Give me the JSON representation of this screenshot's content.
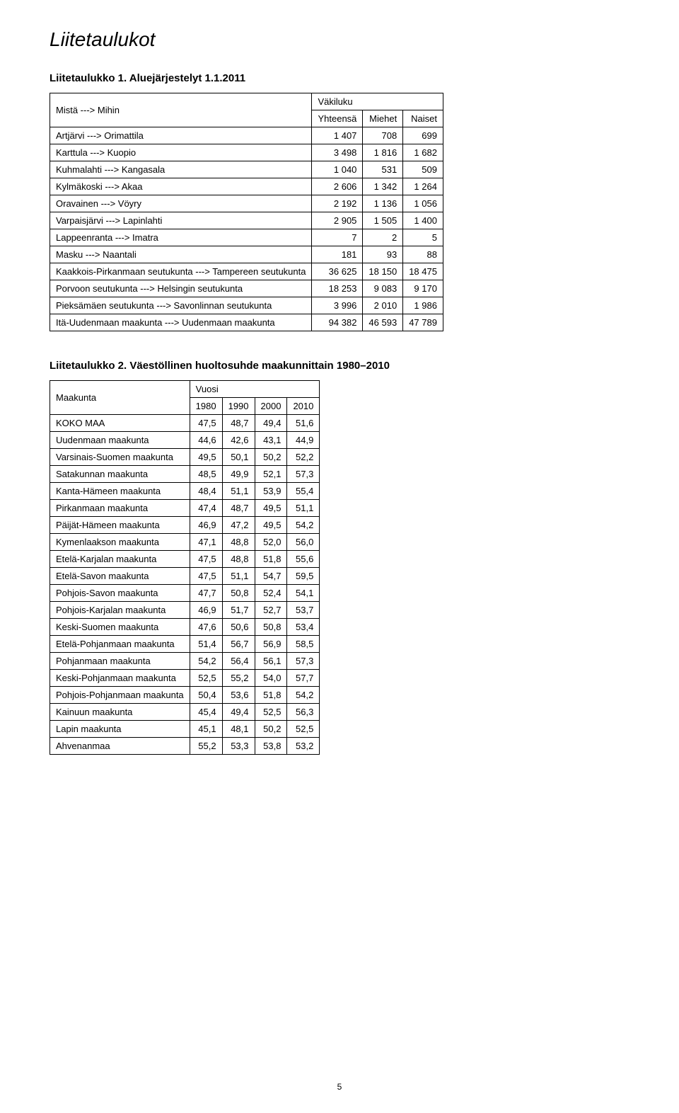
{
  "main_title": "Liitetaulukot",
  "table1": {
    "title": "Liitetaulukko 1. Aluejärjestelyt 1.1.2011",
    "header_col1": "Mistä ---> Mihin",
    "header_span": "Väkiluku",
    "header_sub": [
      "Yhteensä",
      "Miehet",
      "Naiset"
    ],
    "rows": [
      {
        "label": "Artjärvi ---> Orimattila",
        "v": [
          "1 407",
          "708",
          "699"
        ]
      },
      {
        "label": "Karttula ---> Kuopio",
        "v": [
          "3 498",
          "1 816",
          "1 682"
        ]
      },
      {
        "label": "Kuhmalahti ---> Kangasala",
        "v": [
          "1 040",
          "531",
          "509"
        ]
      },
      {
        "label": "Kylmäkoski ---> Akaa",
        "v": [
          "2 606",
          "1 342",
          "1 264"
        ]
      },
      {
        "label": "Oravainen ---> Vöyry",
        "v": [
          "2 192",
          "1 136",
          "1 056"
        ]
      },
      {
        "label": "Varpaisjärvi ---> Lapinlahti",
        "v": [
          "2 905",
          "1 505",
          "1 400"
        ]
      },
      {
        "label": "Lappeenranta ---> Imatra",
        "v": [
          "7",
          "2",
          "5"
        ]
      },
      {
        "label": "Masku ---> Naantali",
        "v": [
          "181",
          "93",
          "88"
        ]
      },
      {
        "label": "Kaakkois-Pirkanmaan seutukunta ---> Tampereen seutukunta",
        "v": [
          "36 625",
          "18 150",
          "18 475"
        ]
      },
      {
        "label": "Porvoon seutukunta ---> Helsingin seutukunta",
        "v": [
          "18 253",
          "9 083",
          "9 170"
        ]
      },
      {
        "label": "Pieksämäen seutukunta ---> Savonlinnan seutukunta",
        "v": [
          "3 996",
          "2 010",
          "1 986"
        ]
      },
      {
        "label": "Itä-Uudenmaan maakunta ---> Uudenmaan maakunta",
        "v": [
          "94 382",
          "46 593",
          "47 789"
        ]
      }
    ]
  },
  "table2": {
    "title": "Liitetaulukko 2. Väestöllinen huoltosuhde maakunnittain 1980–2010",
    "header_col1": "Maakunta",
    "header_span": "Vuosi",
    "years": [
      "1980",
      "1990",
      "2000",
      "2010"
    ],
    "rows": [
      {
        "label": "KOKO MAA",
        "v": [
          "47,5",
          "48,7",
          "49,4",
          "51,6"
        ]
      },
      {
        "label": "Uudenmaan maakunta",
        "v": [
          "44,6",
          "42,6",
          "43,1",
          "44,9"
        ]
      },
      {
        "label": "Varsinais-Suomen maakunta",
        "v": [
          "49,5",
          "50,1",
          "50,2",
          "52,2"
        ]
      },
      {
        "label": "Satakunnan maakunta",
        "v": [
          "48,5",
          "49,9",
          "52,1",
          "57,3"
        ]
      },
      {
        "label": "Kanta-Hämeen maakunta",
        "v": [
          "48,4",
          "51,1",
          "53,9",
          "55,4"
        ]
      },
      {
        "label": "Pirkanmaan maakunta",
        "v": [
          "47,4",
          "48,7",
          "49,5",
          "51,1"
        ]
      },
      {
        "label": "Päijät-Hämeen maakunta",
        "v": [
          "46,9",
          "47,2",
          "49,5",
          "54,2"
        ]
      },
      {
        "label": "Kymenlaakson maakunta",
        "v": [
          "47,1",
          "48,8",
          "52,0",
          "56,0"
        ]
      },
      {
        "label": "Etelä-Karjalan maakunta",
        "v": [
          "47,5",
          "48,8",
          "51,8",
          "55,6"
        ]
      },
      {
        "label": "Etelä-Savon maakunta",
        "v": [
          "47,5",
          "51,1",
          "54,7",
          "59,5"
        ]
      },
      {
        "label": "Pohjois-Savon maakunta",
        "v": [
          "47,7",
          "50,8",
          "52,4",
          "54,1"
        ]
      },
      {
        "label": "Pohjois-Karjalan maakunta",
        "v": [
          "46,9",
          "51,7",
          "52,7",
          "53,7"
        ]
      },
      {
        "label": "Keski-Suomen maakunta",
        "v": [
          "47,6",
          "50,6",
          "50,8",
          "53,4"
        ]
      },
      {
        "label": "Etelä-Pohjanmaan maakunta",
        "v": [
          "51,4",
          "56,7",
          "56,9",
          "58,5"
        ]
      },
      {
        "label": "Pohjanmaan maakunta",
        "v": [
          "54,2",
          "56,4",
          "56,1",
          "57,3"
        ]
      },
      {
        "label": "Keski-Pohjanmaan maakunta",
        "v": [
          "52,5",
          "55,2",
          "54,0",
          "57,7"
        ]
      },
      {
        "label": "Pohjois-Pohjanmaan maakunta",
        "v": [
          "50,4",
          "53,6",
          "51,8",
          "54,2"
        ]
      },
      {
        "label": "Kainuun maakunta",
        "v": [
          "45,4",
          "49,4",
          "52,5",
          "56,3"
        ]
      },
      {
        "label": "Lapin maakunta",
        "v": [
          "45,1",
          "48,1",
          "50,2",
          "52,5"
        ]
      },
      {
        "label": "Ahvenanmaa",
        "v": [
          "55,2",
          "53,3",
          "53,8",
          "53,2"
        ]
      }
    ]
  },
  "page_number": "5"
}
